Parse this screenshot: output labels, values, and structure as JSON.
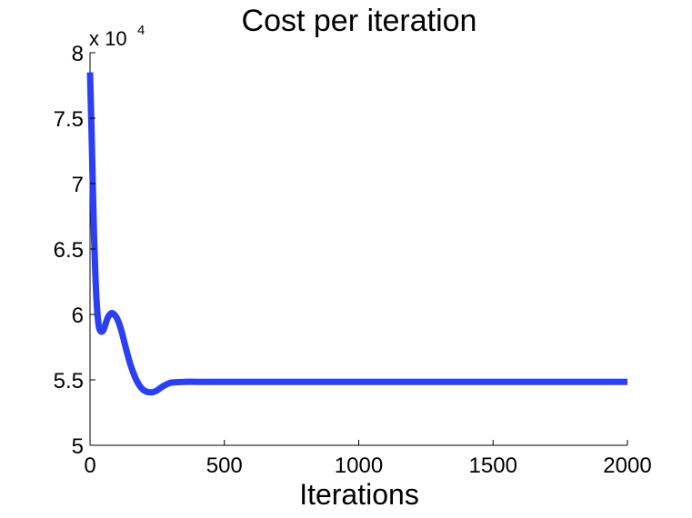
{
  "chart_data": {
    "type": "line",
    "title": "Cost per iteration",
    "xlabel": "Iterations",
    "ylabel": "",
    "y_multiplier_base": "x 10",
    "y_multiplier_exp": "4",
    "xlim": [
      0,
      2000
    ],
    "ylim": [
      5,
      8
    ],
    "xticks": [
      0,
      500,
      1000,
      1500,
      2000
    ],
    "xtick_labels": [
      "0",
      "500",
      "1000",
      "1500",
      "2000"
    ],
    "yticks": [
      5,
      5.5,
      6,
      6.5,
      7,
      7.5,
      8
    ],
    "ytick_labels": [
      "5",
      "5.5",
      "6",
      "6.5",
      "7",
      "7.5",
      "8"
    ],
    "grid": false,
    "series": [
      {
        "color": "#2b3ff5",
        "x": [
          0,
          5,
          10,
          15,
          20,
          25,
          30,
          35,
          40,
          45,
          50,
          55,
          60,
          65,
          70,
          80,
          90,
          100,
          110,
          120,
          130,
          140,
          150,
          160,
          170,
          180,
          190,
          200,
          210,
          220,
          230,
          240,
          250,
          260,
          270,
          280,
          290,
          300,
          320,
          350,
          400,
          500,
          700,
          1000,
          1300,
          1600,
          2000
        ],
        "y": [
          7.85,
          7.45,
          7.0,
          6.6,
          6.3,
          6.08,
          5.95,
          5.89,
          5.87,
          5.87,
          5.88,
          5.91,
          5.94,
          5.97,
          5.99,
          6.01,
          6.0,
          5.97,
          5.92,
          5.85,
          5.77,
          5.69,
          5.62,
          5.56,
          5.51,
          5.47,
          5.44,
          5.42,
          5.41,
          5.405,
          5.405,
          5.41,
          5.42,
          5.435,
          5.45,
          5.46,
          5.47,
          5.478,
          5.482,
          5.485,
          5.485,
          5.485,
          5.485,
          5.485,
          5.485,
          5.485,
          5.485
        ]
      }
    ]
  }
}
